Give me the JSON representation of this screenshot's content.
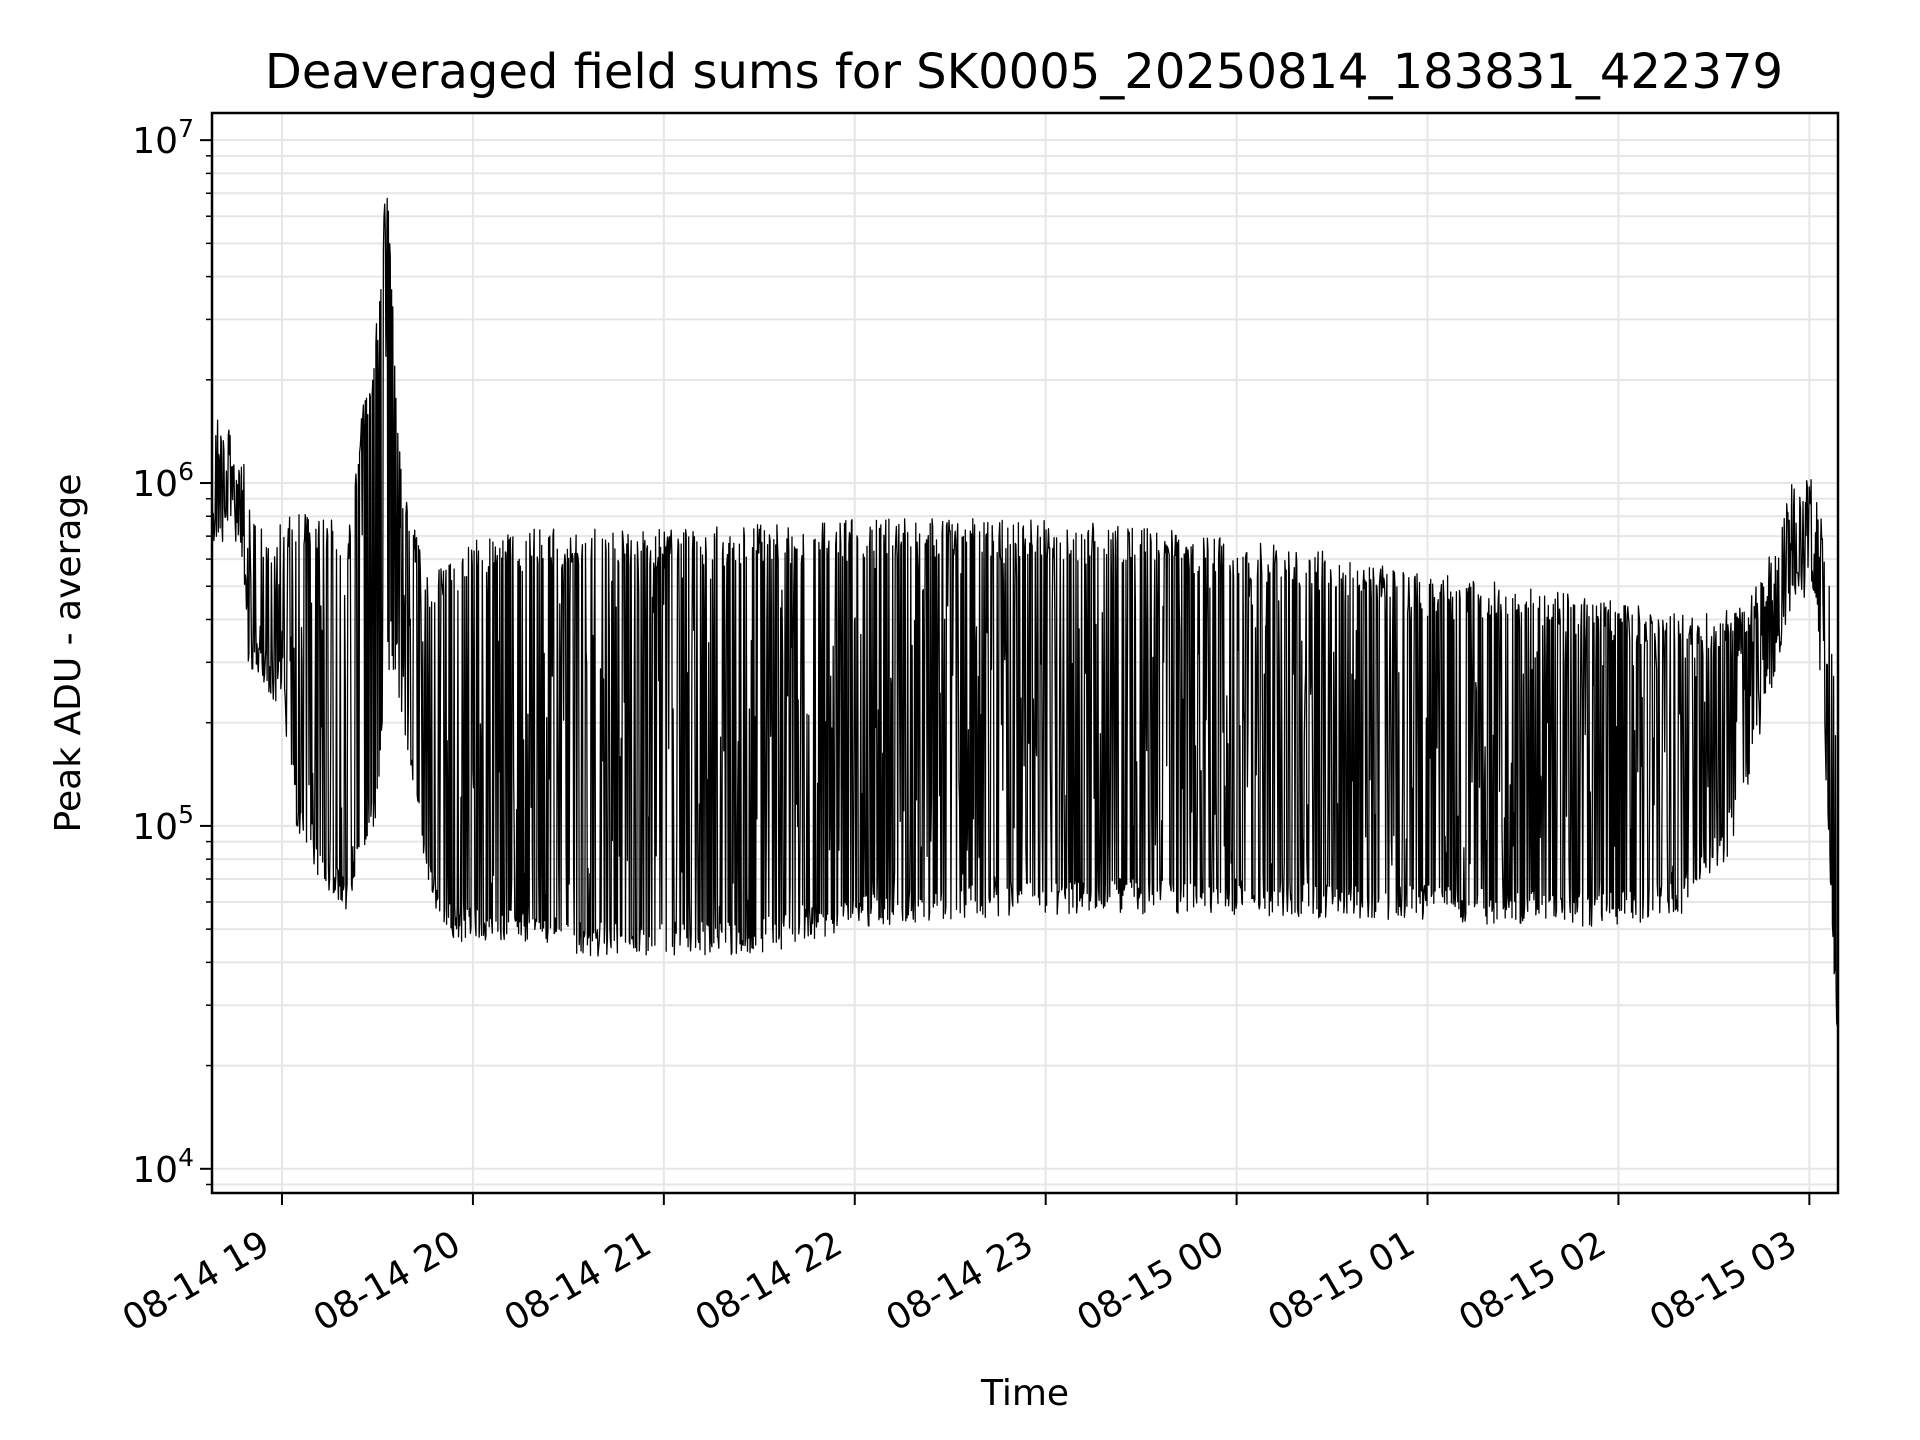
{
  "chart_data": {
    "type": "line",
    "title": "Deaveraged field sums for SK0005_20250814_183831_422379",
    "xlabel": "Time",
    "ylabel": "Peak ADU - average",
    "yscale": "log",
    "ylim": [
      8500,
      12000000
    ],
    "xlim": [
      "2025-08-14 18:38",
      "2025-08-15 03:09"
    ],
    "grid": true,
    "line_color": "#000000",
    "x_ticks": [
      {
        "t": "2025-08-14 19:00",
        "label": "08-14 19"
      },
      {
        "t": "2025-08-14 20:00",
        "label": "08-14 20"
      },
      {
        "t": "2025-08-14 21:00",
        "label": "08-14 21"
      },
      {
        "t": "2025-08-14 22:00",
        "label": "08-14 22"
      },
      {
        "t": "2025-08-14 23:00",
        "label": "08-14 23"
      },
      {
        "t": "2025-08-15 00:00",
        "label": "08-15 00"
      },
      {
        "t": "2025-08-15 01:00",
        "label": "08-15 01"
      },
      {
        "t": "2025-08-15 02:00",
        "label": "08-15 02"
      },
      {
        "t": "2025-08-15 03:00",
        "label": "08-15 03"
      }
    ],
    "y_ticks": [
      {
        "value": 10000,
        "base": "10",
        "exp": "4"
      },
      {
        "value": 100000,
        "base": "10",
        "exp": "5"
      },
      {
        "value": 1000000,
        "base": "10",
        "exp": "6"
      },
      {
        "value": 10000000,
        "base": "10",
        "exp": "7"
      }
    ],
    "series": [
      {
        "x": [
          "2025-08-14 18:38",
          "2025-08-14 18:40",
          "2025-08-14 18:44",
          "2025-08-14 18:48",
          "2025-08-14 18:50",
          "2025-08-14 18:52",
          "2025-08-14 18:56",
          "2025-08-14 19:00",
          "2025-08-14 19:05",
          "2025-08-14 19:10",
          "2025-08-14 19:15",
          "2025-08-14 19:20",
          "2025-08-14 19:25",
          "2025-08-14 19:30",
          "2025-08-14 19:33",
          "2025-08-14 19:36",
          "2025-08-14 19:38",
          "2025-08-14 19:42",
          "2025-08-14 19:46",
          "2025-08-14 19:50",
          "2025-08-14 19:55",
          "2025-08-14 20:00",
          "2025-08-14 20:20",
          "2025-08-14 20:40",
          "2025-08-14 21:00",
          "2025-08-14 21:20",
          "2025-08-14 21:40",
          "2025-08-14 22:00",
          "2025-08-14 22:30",
          "2025-08-14 23:00",
          "2025-08-14 23:30",
          "2025-08-15 00:00",
          "2025-08-15 00:30",
          "2025-08-15 01:00",
          "2025-08-15 01:30",
          "2025-08-15 02:00",
          "2025-08-15 02:20",
          "2025-08-15 02:35",
          "2025-08-15 02:45",
          "2025-08-15 02:55",
          "2025-08-15 03:02",
          "2025-08-15 03:06",
          "2025-08-15 03:09"
        ],
        "low": [
          700000,
          700000,
          800000,
          600000,
          250000,
          300000,
          250000,
          250000,
          100000,
          80000,
          70000,
          60000,
          80000,
          120000,
          300000,
          250000,
          200000,
          120000,
          70000,
          55000,
          50000,
          50000,
          48000,
          45000,
          45000,
          45000,
          48000,
          55000,
          58000,
          60000,
          60000,
          60000,
          58000,
          58000,
          55000,
          55000,
          60000,
          90000,
          200000,
          500000,
          500000,
          100000,
          20000
        ],
        "high": [
          1200000,
          1800000,
          1300000,
          1100000,
          800000,
          750000,
          700000,
          750000,
          800000,
          800000,
          800000,
          600000,
          1500000,
          3000000,
          8000000,
          2000000,
          900000,
          700000,
          500000,
          550000,
          600000,
          650000,
          700000,
          700000,
          700000,
          720000,
          720000,
          750000,
          760000,
          740000,
          720000,
          650000,
          600000,
          520000,
          480000,
          430000,
          400000,
          420000,
          500000,
          1000000,
          1050000,
          600000,
          150000
        ]
      }
    ]
  }
}
